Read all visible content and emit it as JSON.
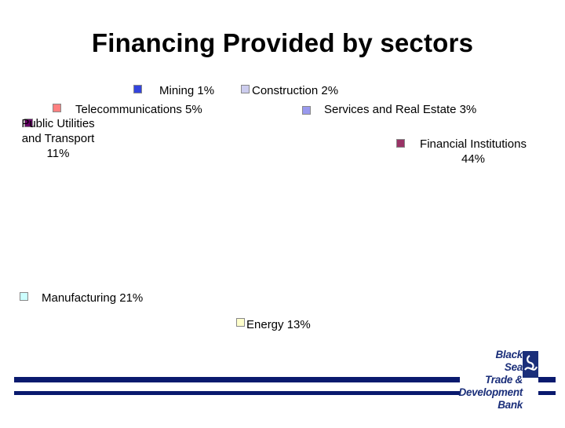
{
  "chart_data": {
    "type": "pie",
    "title": "Financing Provided  by sectors",
    "slices": [
      {
        "label": "Mining",
        "value": 1,
        "text": "Mining 1%",
        "color": "#3344dd"
      },
      {
        "label": "Construction",
        "value": 2,
        "text": "Construction 2%",
        "color": "#ccccee"
      },
      {
        "label": "Services and Real Estate",
        "value": 3,
        "text": "Services and Real Estate 3%",
        "color": "#9999ee"
      },
      {
        "label": "Financial Institutions",
        "value": 44,
        "text": "Financial Institutions 44%",
        "color": "#993366"
      },
      {
        "label": "Energy",
        "value": 13,
        "text": "Energy 13%",
        "color": "#ffffcc"
      },
      {
        "label": "Manufacturing",
        "value": 21,
        "text": "Manufacturing 21%",
        "color": "#ccffff"
      },
      {
        "label": "Public Utilities and Transport",
        "value": 11,
        "text": "Public Utilities and Transport 11%",
        "color": "#660066"
      },
      {
        "label": "Telecommunications",
        "value": 5,
        "text": "Telecommunications 5%",
        "color": "#ff8080"
      }
    ]
  },
  "logo": {
    "lines": [
      "Black",
      "Sea",
      "Trade &",
      "Development",
      "Bank"
    ],
    "color": "#1b2f7a"
  }
}
